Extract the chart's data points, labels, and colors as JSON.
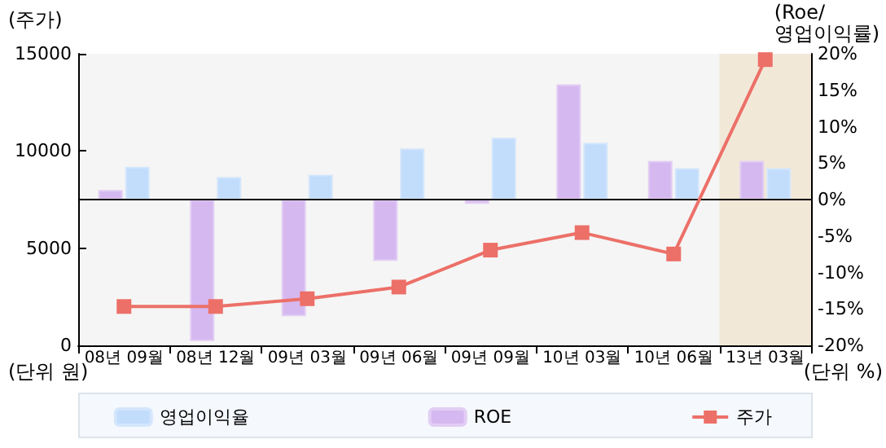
{
  "chart_data": {
    "type": "bar",
    "ylabel": "(주가)",
    "y2label": "(Roe/\n영업이익률)",
    "annotations": [
      "(단위 원)",
      "(단위 %)"
    ],
    "categories": [
      "08년 09월",
      "08년 12월",
      "09년 03월",
      "09년 06월",
      "09년 09월",
      "10년 03월",
      "10년 06월",
      "13년 03월"
    ],
    "series": [
      {
        "name": "영업이익율",
        "axis": "y2",
        "color": "#c2dcfc",
        "values": [
          4.5,
          3.1,
          3.4,
          7,
          8.5,
          7.8,
          4.3,
          4.3
        ]
      },
      {
        "name": "ROE",
        "axis": "y2",
        "color": "#d6b8f0",
        "values": [
          1.3,
          -19.4,
          -16,
          -8.4,
          -0.6,
          15.8,
          5.3,
          5.3
        ]
      },
      {
        "name": "주가",
        "type": "line",
        "color": "#ec7068",
        "marker": "square",
        "line_style": "solid",
        "values": [
          2000,
          2000,
          2400,
          3000,
          4900,
          5800,
          4700,
          14700
        ]
      }
    ],
    "ylim": [
      0,
      15000
    ],
    "yticks": [
      0,
      5000,
      10000,
      15000
    ],
    "y2lim": [
      -20,
      20
    ],
    "y2ticks": [
      {
        "value": -20,
        "label": "-20%"
      },
      {
        "value": -15,
        "label": "-15%"
      },
      {
        "value": -10,
        "label": "-10%"
      },
      {
        "value": -5,
        "label": "-5%"
      },
      {
        "value": 0,
        "label": "0%"
      },
      {
        "value": 5,
        "label": "5%"
      },
      {
        "value": 10,
        "label": "10%"
      },
      {
        "value": 15,
        "label": "15%"
      },
      {
        "value": 20,
        "label": "20%"
      }
    ],
    "ref_lines": [
      {
        "axis": "y2",
        "value": 0,
        "color": "#000000"
      }
    ],
    "bands": [
      {
        "axis": "x",
        "from": "13년 03월",
        "to": "13년 03월",
        "color": "#f2e8d8"
      }
    ],
    "grid": false,
    "legend": "bottom"
  }
}
